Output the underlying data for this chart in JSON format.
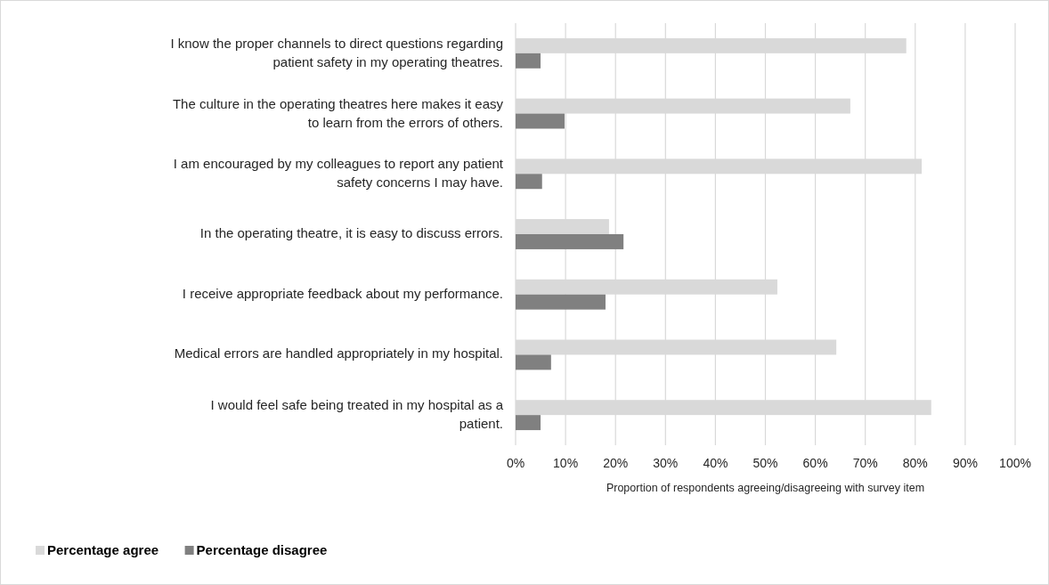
{
  "chart_data": {
    "type": "bar",
    "orientation": "horizontal",
    "xlabel": "Proportion of respondents agreeing/disagreeing with survey item",
    "categories": [
      "I know the proper channels to direct questions regarding patient safety in my operating theatres.",
      "The culture in the operating theatres here makes it easy to learn from the errors of others.",
      "I am encouraged by my colleagues to report any patient safety concerns I may have.",
      "In the operating theatre, it is easy to discuss errors.",
      "I receive appropriate feedback about my performance.",
      "Medical errors are handled appropriately in my hospital.",
      "I would feel safe being treated in my hospital as a patient."
    ],
    "series": [
      {
        "name": "Percentage agree",
        "color": "#d9d9d9",
        "values": [
          78.2,
          67,
          81.3,
          18.7,
          52.4,
          64.2,
          83.2
        ]
      },
      {
        "name": "Percentage disagree",
        "color": "#808080",
        "values": [
          5,
          9.8,
          5.3,
          21.6,
          18,
          7.1,
          5
        ]
      }
    ],
    "xlim": [
      0,
      100
    ],
    "xticks": [
      {
        "value": 0,
        "label": "0%"
      },
      {
        "value": 10,
        "label": "10%"
      },
      {
        "value": 20,
        "label": "20%"
      },
      {
        "value": 30,
        "label": "30%"
      },
      {
        "value": 40,
        "label": "40%"
      },
      {
        "value": 50,
        "label": "50%"
      },
      {
        "value": 60,
        "label": "60%"
      },
      {
        "value": 70,
        "label": "70%"
      },
      {
        "value": 80,
        "label": "80%"
      },
      {
        "value": 90,
        "label": "90%"
      },
      {
        "value": 100,
        "label": "100%"
      }
    ],
    "grid": "x",
    "legend": "bottom left"
  }
}
